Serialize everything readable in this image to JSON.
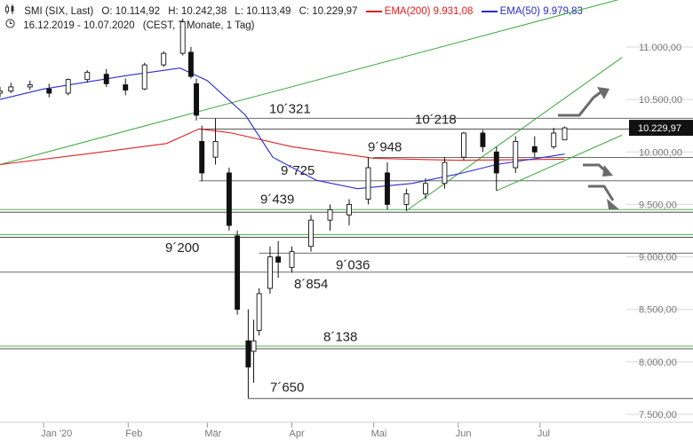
{
  "header": {
    "symbol": "SMI (SIX, Last)",
    "open": "O: 10.114,92",
    "high": "H: 10.242,38",
    "low": "L: 10.113,49",
    "close": "C: 10.229,97",
    "ema200_label": "EMA(200)",
    "ema200_value": "9.931,08",
    "ema50_label": "EMA(50)",
    "ema50_value": "9.979,83",
    "range": "16.12.2019 - 10.07.2020",
    "period": "(CEST, 7 Monate, 1 Tag)"
  },
  "colors": {
    "ema200": "#dd2222",
    "ema50": "#2b2bd0",
    "trend": "#3aa83a",
    "level": "#555555",
    "candle": "#111111",
    "arrow": "#6b6b6b"
  },
  "chart_data": {
    "type": "candlestick",
    "title": "SMI (SIX, Last)",
    "ylim": [
      7500,
      11300
    ],
    "y_ticks": [
      "7.500,00",
      "8.000,00",
      "8.500,00",
      "9.000,00",
      "9.500,00",
      "10.000,00",
      "10.500,00",
      "11.000,00"
    ],
    "y_tick_values": [
      7500,
      8000,
      8500,
      9000,
      9500,
      10000,
      10500,
      11000
    ],
    "x_ticks": [
      "Jan '20",
      "Feb",
      "Mär",
      "Apr",
      "Mai",
      "Jun",
      "Jul"
    ],
    "x_tick_dates": [
      "2020-01-01",
      "2020-02-01",
      "2020-03-01",
      "2020-04-01",
      "2020-05-01",
      "2020-06-01",
      "2020-07-01"
    ],
    "last_value_label": "10.229,97",
    "last_value": 10229.97,
    "levels": [
      {
        "label": "10´321",
        "value": 10321,
        "from": "2020-02-27",
        "color": "gray"
      },
      {
        "label": "10´218",
        "value": 10218,
        "from": "2020-02-27",
        "color": "gray"
      },
      {
        "label": "9´948",
        "value": 9948,
        "from": "2020-05-01",
        "color": "gray"
      },
      {
        "label": "9´725",
        "value": 9725,
        "from": "2020-02-27",
        "color": "gray"
      },
      {
        "label": "9´439",
        "value": 9439,
        "from": "2019-12-16",
        "color": "green"
      },
      {
        "label": "9´200",
        "value": 9200,
        "from": "2019-12-16",
        "color": "green"
      },
      {
        "label": "9´036",
        "value": 9036,
        "from": "2020-03-20",
        "color": "gray"
      },
      {
        "label": "8´854",
        "value": 8854,
        "from": "2019-12-16",
        "color": "gray"
      },
      {
        "label": "8´138",
        "value": 8138,
        "from": "2019-12-16",
        "color": "green"
      },
      {
        "label": "7´650",
        "value": 7650,
        "from": "2020-03-16",
        "color": "gray"
      }
    ],
    "trendlines": [
      {
        "from": [
          "2019-12-16",
          9880
        ],
        "to": [
          "2020-07-31",
          11460
        ]
      },
      {
        "from": [
          "2020-05-13",
          9440
        ],
        "to": [
          "2020-07-31",
          10900
        ]
      },
      {
        "from": [
          "2020-06-15",
          9630
        ],
        "to": [
          "2020-07-31",
          10160
        ]
      }
    ],
    "ema200": [
      [
        "2019-12-16",
        9880
      ],
      [
        "2020-01-15",
        9975
      ],
      [
        "2020-02-15",
        10080
      ],
      [
        "2020-02-27",
        10220
      ],
      [
        "2020-03-10",
        10180
      ],
      [
        "2020-04-01",
        10050
      ],
      [
        "2020-05-01",
        9940
      ],
      [
        "2020-06-01",
        9920
      ],
      [
        "2020-07-10",
        9931
      ]
    ],
    "ema50": [
      [
        "2019-12-16",
        10500
      ],
      [
        "2020-01-01",
        10600
      ],
      [
        "2020-02-01",
        10730
      ],
      [
        "2020-02-20",
        10800
      ],
      [
        "2020-03-01",
        10680
      ],
      [
        "2020-03-15",
        10350
      ],
      [
        "2020-03-25",
        9950
      ],
      [
        "2020-04-10",
        9730
      ],
      [
        "2020-04-25",
        9650
      ],
      [
        "2020-05-15",
        9700
      ],
      [
        "2020-06-01",
        9790
      ],
      [
        "2020-06-15",
        9880
      ],
      [
        "2020-07-10",
        9980
      ]
    ],
    "ohlc": [
      [
        "2019-12-16",
        10560,
        10620,
        10520,
        10580
      ],
      [
        "2019-12-20",
        10580,
        10660,
        10560,
        10620
      ],
      [
        "2019-12-27",
        10620,
        10680,
        10590,
        10640
      ],
      [
        "2020-01-03",
        10600,
        10650,
        10520,
        10560
      ],
      [
        "2020-01-10",
        10560,
        10700,
        10540,
        10690
      ],
      [
        "2020-01-17",
        10690,
        10780,
        10660,
        10760
      ],
      [
        "2020-01-24",
        10740,
        10790,
        10620,
        10650
      ],
      [
        "2020-01-31",
        10640,
        10700,
        10540,
        10590
      ],
      [
        "2020-02-07",
        10600,
        10850,
        10590,
        10830
      ],
      [
        "2020-02-14",
        10830,
        10960,
        10810,
        10940
      ],
      [
        "2020-02-21",
        10940,
        11270,
        10920,
        11240
      ],
      [
        "2020-02-24",
        10950,
        11000,
        10700,
        10720
      ],
      [
        "2020-02-26",
        10650,
        10700,
        10300,
        10350
      ],
      [
        "2020-02-28",
        10100,
        10250,
        9720,
        9800
      ],
      [
        "2020-03-04",
        9950,
        10320,
        9880,
        10100
      ],
      [
        "2020-03-09",
        9800,
        9850,
        9250,
        9300
      ],
      [
        "2020-03-12",
        9200,
        9250,
        8450,
        8500
      ],
      [
        "2020-03-16",
        8200,
        8500,
        7650,
        7950
      ],
      [
        "2020-03-18",
        8100,
        8400,
        7800,
        8200
      ],
      [
        "2020-03-20",
        8300,
        8700,
        8250,
        8650
      ],
      [
        "2020-03-24",
        8700,
        9100,
        8650,
        9000
      ],
      [
        "2020-03-27",
        9000,
        9150,
        8800,
        8950
      ],
      [
        "2020-04-01",
        8900,
        9100,
        8850,
        9050
      ],
      [
        "2020-04-08",
        9100,
        9400,
        9050,
        9350
      ],
      [
        "2020-04-15",
        9350,
        9500,
        9250,
        9450
      ],
      [
        "2020-04-22",
        9400,
        9550,
        9300,
        9500
      ],
      [
        "2020-04-29",
        9550,
        9950,
        9500,
        9850
      ],
      [
        "2020-05-06",
        9800,
        9900,
        9450,
        9500
      ],
      [
        "2020-05-13",
        9500,
        9650,
        9440,
        9600
      ],
      [
        "2020-05-20",
        9600,
        9750,
        9550,
        9700
      ],
      [
        "2020-05-27",
        9700,
        9950,
        9650,
        9900
      ],
      [
        "2020-06-03",
        9950,
        10190,
        9920,
        10180
      ],
      [
        "2020-06-10",
        10180,
        10210,
        10000,
        10050
      ],
      [
        "2020-06-15",
        10000,
        10050,
        9630,
        9800
      ],
      [
        "2020-06-22",
        9850,
        10150,
        9800,
        10100
      ],
      [
        "2020-06-29",
        10050,
        10150,
        9950,
        10000
      ],
      [
        "2020-07-06",
        10050,
        10230,
        10030,
        10180
      ],
      [
        "2020-07-10",
        10115,
        10242,
        10113,
        10230
      ]
    ]
  }
}
